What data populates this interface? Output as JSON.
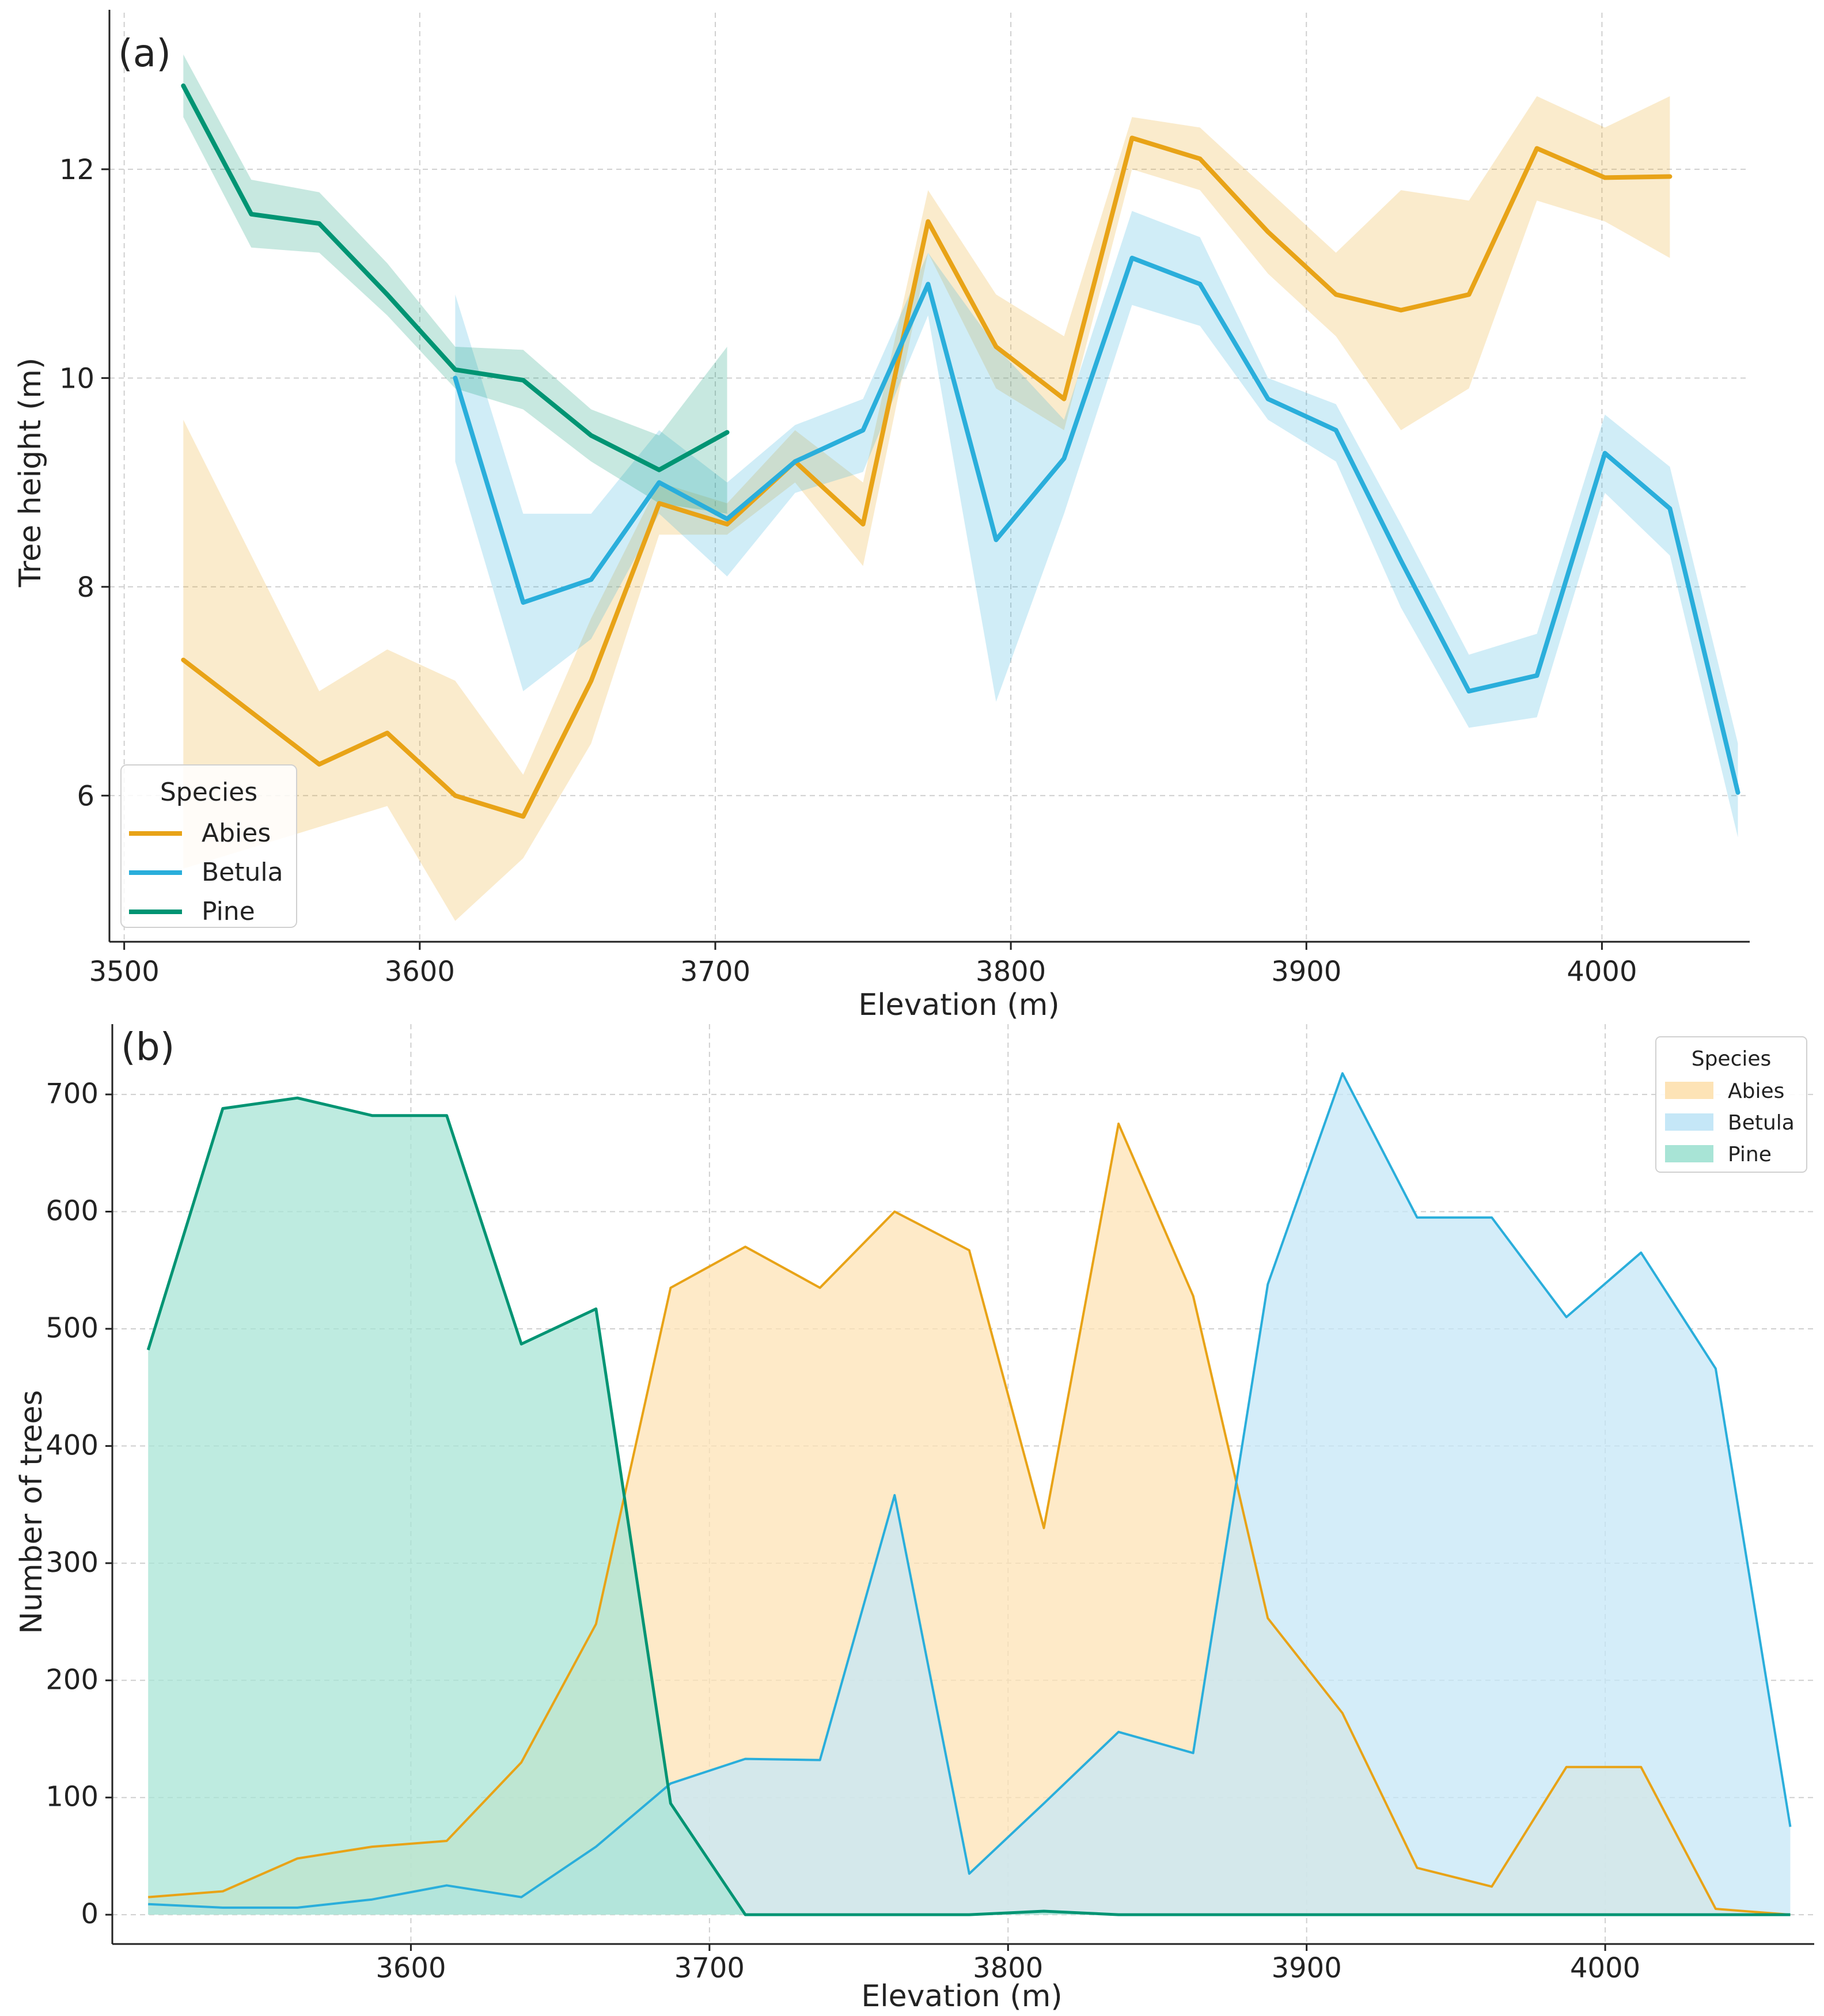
{
  "chart_data": [
    {
      "type": "line",
      "panel": "(a)",
      "xlabel": "Elevation (m)",
      "ylabel": "Tree height (m)",
      "xlim": [
        3495,
        4050
      ],
      "ylim": [
        4.6,
        13.5
      ],
      "xticks": [
        3500,
        3600,
        3700,
        3800,
        3900,
        4000
      ],
      "yticks": [
        6,
        8,
        10,
        12
      ],
      "grid": true,
      "legend": {
        "title": "Species",
        "position": "bottom-left"
      },
      "series": [
        {
          "name": "Abies",
          "color": "#E8A317",
          "x": [
            3520,
            3543,
            3566,
            3589,
            3612,
            3635,
            3658,
            3681,
            3704,
            3727,
            3750,
            3772,
            3795,
            3818,
            3841,
            3864,
            3887,
            3910,
            3932,
            3955,
            3978,
            4001,
            4023
          ],
          "y": [
            7.3,
            6.8,
            6.3,
            6.6,
            6.0,
            5.8,
            7.1,
            8.8,
            8.6,
            9.2,
            8.6,
            11.5,
            10.3,
            9.8,
            12.3,
            12.1,
            11.4,
            10.8,
            10.65,
            10.8,
            12.2,
            11.92,
            11.93
          ],
          "ci_low": [
            5.3,
            5.5,
            5.7,
            5.9,
            4.8,
            5.4,
            6.5,
            8.5,
            8.5,
            9.0,
            8.2,
            11.2,
            9.9,
            9.5,
            12.0,
            11.8,
            11.0,
            10.4,
            9.5,
            9.9,
            11.7,
            11.5,
            11.15
          ],
          "ci_high": [
            9.6,
            8.3,
            7.0,
            7.4,
            7.1,
            6.2,
            7.7,
            9.0,
            8.8,
            9.5,
            9.0,
            11.8,
            10.8,
            10.4,
            12.5,
            12.4,
            11.8,
            11.2,
            11.8,
            11.7,
            12.7,
            12.4,
            12.7
          ]
        },
        {
          "name": "Betula",
          "color": "#2AAEDB",
          "x": [
            3612,
            3635,
            3658,
            3681,
            3704,
            3727,
            3750,
            3772,
            3795,
            3818,
            3841,
            3864,
            3887,
            3910,
            3932,
            3955,
            3978,
            4001,
            4023,
            4046
          ],
          "y": [
            10.0,
            7.85,
            8.07,
            9.0,
            8.65,
            9.2,
            9.5,
            10.9,
            8.45,
            9.23,
            11.15,
            10.9,
            9.8,
            9.5,
            8.25,
            7.0,
            7.15,
            9.28,
            8.75,
            6.03
          ],
          "ci_low": [
            9.2,
            7.0,
            7.5,
            8.7,
            8.1,
            8.9,
            9.1,
            10.6,
            6.9,
            8.7,
            10.7,
            10.5,
            9.6,
            9.2,
            7.8,
            6.65,
            6.75,
            8.9,
            8.3,
            5.6
          ],
          "ci_high": [
            10.8,
            8.7,
            8.7,
            9.5,
            9.0,
            9.55,
            9.8,
            11.2,
            10.3,
            9.6,
            11.6,
            11.35,
            10.0,
            9.75,
            8.6,
            7.35,
            7.55,
            9.65,
            9.15,
            6.5
          ]
        },
        {
          "name": "Pine",
          "color": "#009473",
          "x": [
            3520,
            3543,
            3566,
            3589,
            3612,
            3635,
            3658,
            3681,
            3704
          ],
          "y": [
            12.8,
            11.57,
            11.48,
            10.8,
            10.08,
            9.98,
            9.45,
            9.12,
            9.48
          ],
          "ci_low": [
            12.5,
            11.25,
            11.2,
            10.6,
            9.9,
            9.7,
            9.2,
            8.8,
            8.7
          ],
          "ci_high": [
            13.1,
            11.9,
            11.78,
            11.1,
            10.3,
            10.27,
            9.7,
            9.45,
            10.3
          ]
        }
      ]
    },
    {
      "type": "area",
      "panel": "(b)",
      "xlabel": "Elevation (m)",
      "ylabel": "Number of trees",
      "xlim": [
        3500,
        4070
      ],
      "ylim": [
        -25,
        760
      ],
      "xticks": [
        3600,
        3700,
        3800,
        3900,
        4000
      ],
      "yticks": [
        0,
        100,
        200,
        300,
        400,
        500,
        600,
        700
      ],
      "grid": true,
      "legend": {
        "title": "Species",
        "position": "top-right"
      },
      "x": [
        3512,
        3537,
        3562,
        3587,
        3612,
        3637,
        3662,
        3687,
        3712,
        3737,
        3762,
        3787,
        3812,
        3837,
        3862,
        3887,
        3912,
        3937,
        3962,
        3987,
        4012,
        4037,
        4062
      ],
      "series": [
        {
          "name": "Abies",
          "color": "#E8A317",
          "fill": "#FDE3B6",
          "values": [
            15,
            20,
            48,
            58,
            63,
            130,
            248,
            535,
            570,
            535,
            600,
            567,
            330,
            675,
            528,
            253,
            172,
            40,
            24,
            126,
            126,
            5,
            0
          ]
        },
        {
          "name": "Betula",
          "color": "#2AAEDB",
          "fill": "#C5E7F7",
          "values": [
            9,
            6,
            6,
            13,
            25,
            15,
            58,
            112,
            133,
            132,
            358,
            35,
            95,
            156,
            138,
            538,
            718,
            595,
            595,
            510,
            565,
            466,
            75
          ]
        },
        {
          "name": "Pine",
          "color": "#009473",
          "fill": "#A8E4D6",
          "values": [
            482,
            688,
            697,
            682,
            682,
            487,
            517,
            95,
            0,
            0,
            0,
            0,
            3,
            0,
            0,
            0,
            0,
            0,
            0,
            0,
            0,
            0,
            0
          ]
        }
      ]
    }
  ]
}
